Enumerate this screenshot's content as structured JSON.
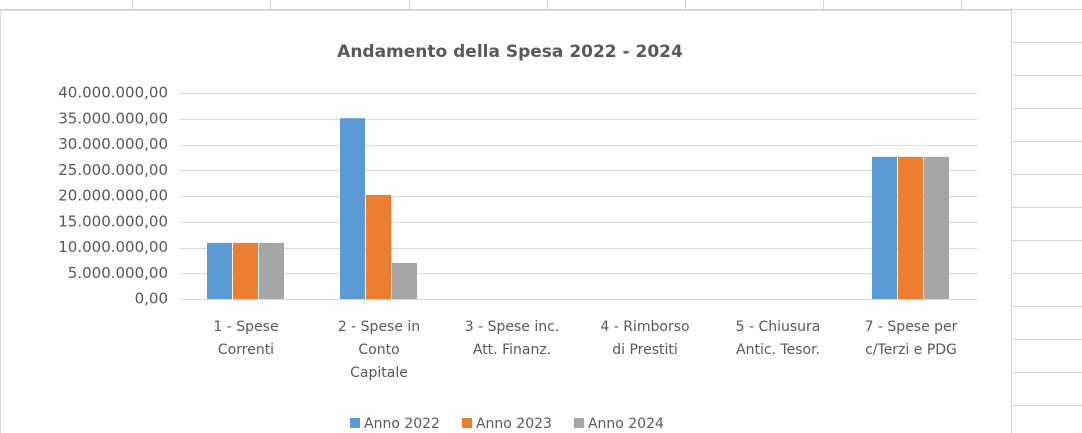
{
  "chart_data": {
    "type": "bar",
    "title": "Andamento della Spesa 2022 - 2024",
    "categories": [
      "1 - Spese\nCorrenti",
      "2 - Spese in\nConto\nCapitale",
      "3 - Spese inc.\nAtt. Finanz.",
      "4 - Rimborso\ndi Prestiti",
      "5 - Chiusura\nAntic. Tesor.",
      "7 - Spese per\nc/Terzi e PDG"
    ],
    "series": [
      {
        "name": "Anno 2022",
        "color": "#5b9bd5",
        "values": [
          10900000,
          35100000,
          0,
          0,
          0,
          27600000
        ]
      },
      {
        "name": "Anno 2023",
        "color": "#ed7d31",
        "values": [
          10900000,
          20200000,
          0,
          0,
          0,
          27600000
        ]
      },
      {
        "name": "Anno 2024",
        "color": "#a5a5a5",
        "values": [
          10900000,
          7000000,
          0,
          0,
          0,
          27600000
        ]
      }
    ],
    "ylim": [
      0,
      40000000
    ],
    "yticks": [
      {
        "value": 0,
        "label": "0,00"
      },
      {
        "value": 5000000,
        "label": "5.000.000,00"
      },
      {
        "value": 10000000,
        "label": "10.000.000,00"
      },
      {
        "value": 15000000,
        "label": "15.000.000,00"
      },
      {
        "value": 20000000,
        "label": "20.000.000,00"
      },
      {
        "value": 25000000,
        "label": "25.000.000,00"
      },
      {
        "value": 30000000,
        "label": "30.000.000,00"
      },
      {
        "value": 35000000,
        "label": "35.000.000,00"
      },
      {
        "value": 40000000,
        "label": "40.000.000,00"
      }
    ],
    "grid": true,
    "legend": "bottom"
  }
}
